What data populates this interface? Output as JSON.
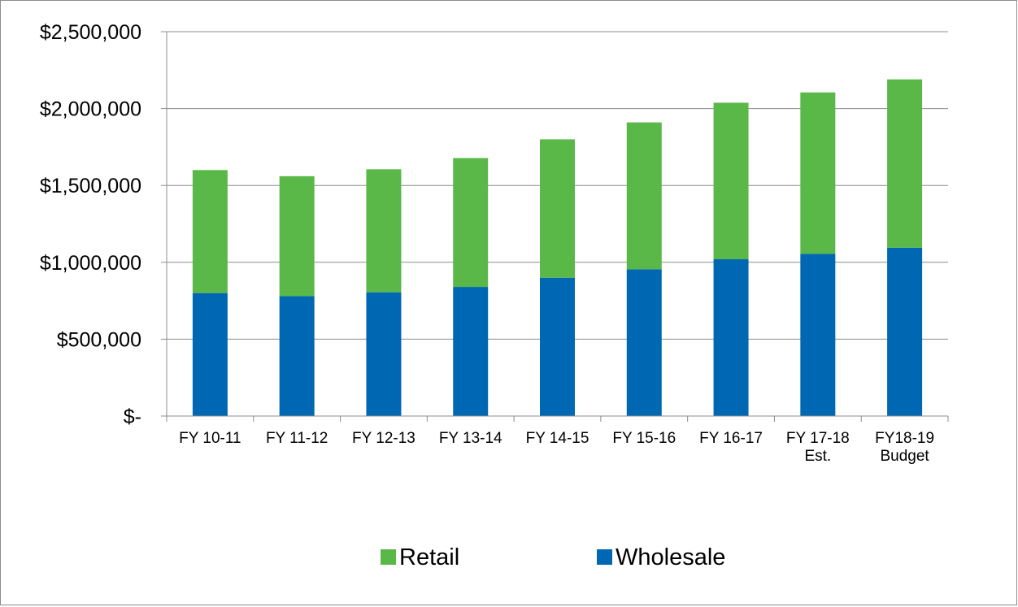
{
  "chart_data": {
    "type": "bar",
    "stacked": true,
    "categories": [
      [
        "FY 10-11"
      ],
      [
        "FY 11-12"
      ],
      [
        "FY 12-13"
      ],
      [
        "FY 13-14"
      ],
      [
        "FY 14-15"
      ],
      [
        "FY 15-16"
      ],
      [
        "FY 16-17"
      ],
      [
        "FY 17-18",
        "Est."
      ],
      [
        "FY18-19",
        "Budget"
      ]
    ],
    "series": [
      {
        "name": "Wholesale",
        "color": "#0068b3",
        "values": [
          800000,
          780000,
          805000,
          840000,
          900000,
          955000,
          1020000,
          1055000,
          1095000
        ]
      },
      {
        "name": "Retail",
        "color": "#59b848",
        "values": [
          800000,
          780000,
          800000,
          838000,
          900000,
          955000,
          1018000,
          1050000,
          1095000
        ]
      }
    ],
    "legend": {
      "position": "bottom",
      "order": [
        "Retail",
        "Wholesale"
      ]
    },
    "y_axis": {
      "ylim": [
        0,
        2500000
      ],
      "ticks": [
        {
          "value": 0,
          "label": "$-"
        },
        {
          "value": 500000,
          "label": "$500,000"
        },
        {
          "value": 1000000,
          "label": "$1,000,000"
        },
        {
          "value": 1500000,
          "label": "$1,500,000"
        },
        {
          "value": 2000000,
          "label": "$2,000,000"
        },
        {
          "value": 2500000,
          "label": "$2,500,000"
        }
      ]
    },
    "grid": true,
    "title": "",
    "xlabel": "",
    "ylabel": ""
  }
}
